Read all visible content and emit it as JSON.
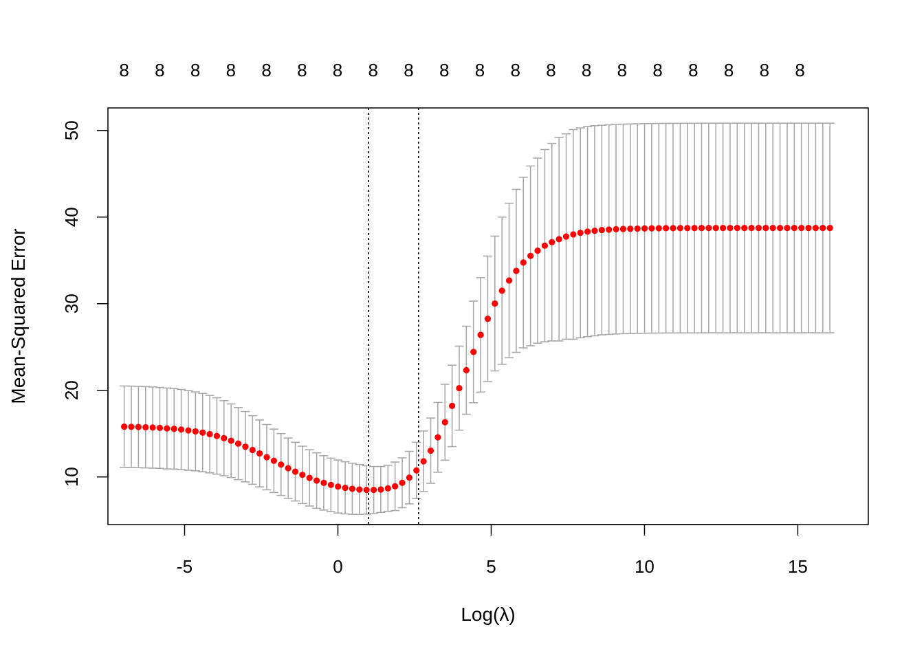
{
  "chart_data": {
    "type": "scatter",
    "title": "",
    "xlabel": "Log(λ)",
    "ylabel": "Mean-Squared Error",
    "xlim": [
      -7.5,
      17.3
    ],
    "ylim": [
      4.5,
      52.6
    ],
    "x_ticks": [
      -5,
      0,
      5,
      10,
      15
    ],
    "x_tick_labels": [
      "-5",
      "0",
      "5",
      "10",
      "15"
    ],
    "y_ticks": [
      10,
      20,
      30,
      40,
      50
    ],
    "y_tick_labels": [
      "10",
      "20",
      "30",
      "40",
      "50"
    ],
    "top_axis": {
      "positions": [
        -6.97,
        -5.81,
        -4.65,
        -3.49,
        -2.33,
        -1.17,
        -0.01,
        1.15,
        2.31,
        3.47,
        4.63,
        5.79,
        6.95,
        8.11,
        9.27,
        10.43,
        11.59,
        12.75,
        13.91,
        15.07
      ],
      "labels": [
        "8",
        "8",
        "8",
        "8",
        "8",
        "8",
        "8",
        "8",
        "8",
        "8",
        "8",
        "8",
        "8",
        "8",
        "8",
        "8",
        "8",
        "8",
        "8",
        "8"
      ]
    },
    "vlines": [
      1.0,
      2.63
    ],
    "x_start": -6.97,
    "x_step": 0.2325,
    "mse": [
      15.8,
      15.78,
      15.76,
      15.73,
      15.7,
      15.66,
      15.6,
      15.55,
      15.47,
      15.37,
      15.26,
      15.12,
      14.94,
      14.73,
      14.47,
      14.18,
      13.85,
      13.49,
      13.11,
      12.71,
      12.28,
      11.86,
      11.43,
      11.01,
      10.61,
      10.24,
      9.89,
      9.58,
      9.31,
      9.08,
      8.89,
      8.74,
      8.63,
      8.55,
      8.5,
      8.5,
      8.55,
      8.68,
      8.92,
      9.32,
      9.92,
      10.75,
      11.8,
      13.03,
      14.57,
      16.32,
      18.2,
      20.25,
      22.32,
      24.43,
      26.4,
      28.25,
      30.02,
      31.5,
      32.68,
      33.79,
      34.75,
      35.52,
      36.12,
      36.7,
      37.1,
      37.45,
      37.75,
      38.0,
      38.18,
      38.32,
      38.42,
      38.5,
      38.55,
      38.6,
      38.63,
      38.65,
      38.67,
      38.69,
      38.7,
      38.71,
      38.72,
      38.72,
      38.73,
      38.73,
      38.73,
      38.74,
      38.74,
      38.74,
      38.74,
      38.74,
      38.74,
      38.74,
      38.74,
      38.74,
      38.74,
      38.74,
      38.74,
      38.74,
      38.74,
      38.74,
      38.74,
      38.74,
      38.74,
      38.74
    ],
    "upper": [
      20.5,
      20.48,
      20.45,
      20.42,
      20.38,
      20.33,
      20.27,
      20.2,
      20.1,
      19.97,
      19.82,
      19.64,
      19.41,
      19.14,
      18.8,
      18.43,
      18.01,
      17.55,
      17.07,
      16.57,
      16.05,
      15.52,
      15.0,
      14.49,
      14.0,
      13.55,
      13.14,
      12.78,
      12.45,
      12.17,
      11.95,
      11.75,
      11.58,
      11.43,
      11.3,
      11.2,
      11.2,
      11.35,
      11.72,
      12.2,
      12.95,
      14.0,
      15.3,
      16.8,
      18.6,
      20.7,
      22.9,
      25.1,
      27.4,
      30.3,
      33.0,
      35.5,
      37.8,
      40.0,
      41.6,
      43.2,
      44.6,
      45.9,
      46.8,
      47.8,
      48.5,
      49.2,
      49.6,
      50.1,
      50.3,
      50.45,
      50.55,
      50.6,
      50.65,
      50.7,
      50.73,
      50.75,
      50.77,
      50.79,
      50.8,
      50.81,
      50.82,
      50.82,
      50.83,
      50.83,
      50.83,
      50.84,
      50.84,
      50.84,
      50.84,
      50.84,
      50.84,
      50.84,
      50.84,
      50.84,
      50.84,
      50.84,
      50.84,
      50.84,
      50.84,
      50.84,
      50.84,
      50.84,
      50.84,
      50.84
    ],
    "lower": [
      11.1,
      11.08,
      11.07,
      11.04,
      11.02,
      10.99,
      10.93,
      10.9,
      10.84,
      10.77,
      10.7,
      10.6,
      10.47,
      10.32,
      10.14,
      9.93,
      9.69,
      9.43,
      9.15,
      8.85,
      8.51,
      8.2,
      7.86,
      7.53,
      7.22,
      6.93,
      6.64,
      6.38,
      6.17,
      5.99,
      5.83,
      5.73,
      5.68,
      5.67,
      5.7,
      5.8,
      5.9,
      6.01,
      6.12,
      6.44,
      6.89,
      7.5,
      8.3,
      9.26,
      10.54,
      11.94,
      13.5,
      15.4,
      17.24,
      18.56,
      19.8,
      21.0,
      22.24,
      23.0,
      23.76,
      24.38,
      24.9,
      25.14,
      25.44,
      25.6,
      25.7,
      25.7,
      25.9,
      25.9,
      26.06,
      26.19,
      26.29,
      26.4,
      26.45,
      26.5,
      26.53,
      26.55,
      26.57,
      26.59,
      26.6,
      26.61,
      26.62,
      26.62,
      26.63,
      26.63,
      26.63,
      26.64,
      26.64,
      26.64,
      26.64,
      26.64,
      26.64,
      26.64,
      26.64,
      26.64,
      26.64,
      26.64,
      26.64,
      26.64,
      26.64,
      26.64,
      26.64,
      26.64,
      26.64,
      26.64
    ],
    "colors": {
      "points": "#ff0000",
      "error_bars": "#a9a9a9",
      "vlines": "#000000",
      "frame": "#000000"
    }
  }
}
